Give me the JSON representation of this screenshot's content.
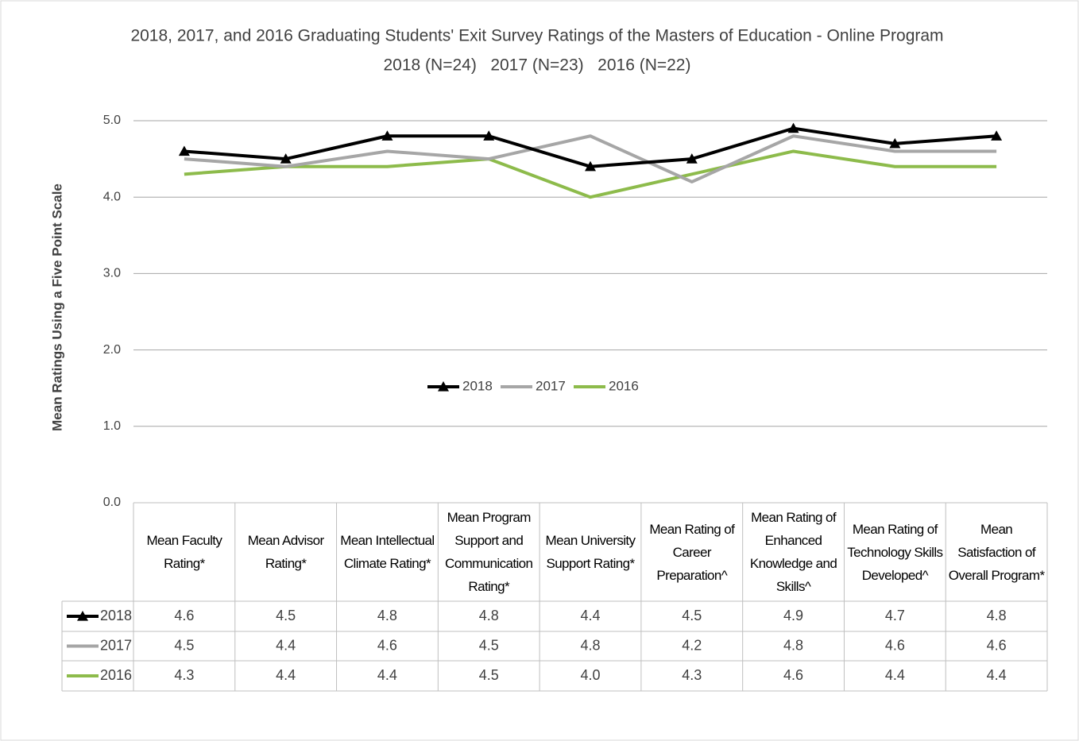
{
  "chart_data": {
    "type": "line",
    "title": "2018, 2017, and 2016 Graduating Students' Exit Survey Ratings of the Masters of Education - Online Program",
    "subtitle": "2018 (N=24)   2017 (N=23)   2016 (N=22)",
    "y_label": "Mean Ratings Using a Five Point Scale",
    "categories": [
      "Mean Faculty Rating*",
      "Mean Advisor Rating*",
      "Mean Intellectual Climate Rating*",
      "Mean Program Support and Communication Rating*",
      "Mean University Support Rating*",
      "Mean Rating of Career Preparation^",
      "Mean Rating of Enhanced Knowledge and Skills^",
      "Mean Rating of Technology Skills Developed^",
      "Mean Satisfaction of Overall Program*"
    ],
    "series": [
      {
        "name": "2018",
        "color": "#000000",
        "marker": "triangle",
        "values": [
          4.6,
          4.5,
          4.8,
          4.8,
          4.4,
          4.5,
          4.9,
          4.7,
          4.8
        ],
        "value_labels": [
          "4.6",
          "4.5",
          "4.8",
          "4.8",
          "4.4",
          "4.5",
          "4.9",
          "4.7",
          "4.8"
        ]
      },
      {
        "name": "2017",
        "color": "#a6a6a6",
        "values": [
          4.5,
          4.4,
          4.6,
          4.5,
          4.8,
          4.2,
          4.8,
          4.6,
          4.6
        ],
        "value_labels": [
          "4.5",
          "4.4",
          "4.6",
          "4.5",
          "4.8",
          "4.2",
          "4.8",
          "4.6",
          "4.6"
        ]
      },
      {
        "name": "2016",
        "color": "#8dbb4b",
        "values": [
          4.3,
          4.4,
          4.4,
          4.5,
          4.0,
          4.3,
          4.6,
          4.4,
          4.4
        ],
        "value_labels": [
          "4.3",
          "4.4",
          "4.4",
          "4.5",
          "4.0",
          "4.3",
          "4.6",
          "4.4",
          "4.4"
        ]
      }
    ],
    "ylim": [
      0,
      5
    ],
    "yticks": [
      {
        "value": 0,
        "label": "0.0"
      },
      {
        "value": 1,
        "label": "1.0"
      },
      {
        "value": 2,
        "label": "2.0"
      },
      {
        "value": 3,
        "label": "3.0"
      },
      {
        "value": 4,
        "label": "4.0"
      },
      {
        "value": 5,
        "label": "5.0"
      }
    ],
    "grid": true,
    "legend": "center"
  }
}
